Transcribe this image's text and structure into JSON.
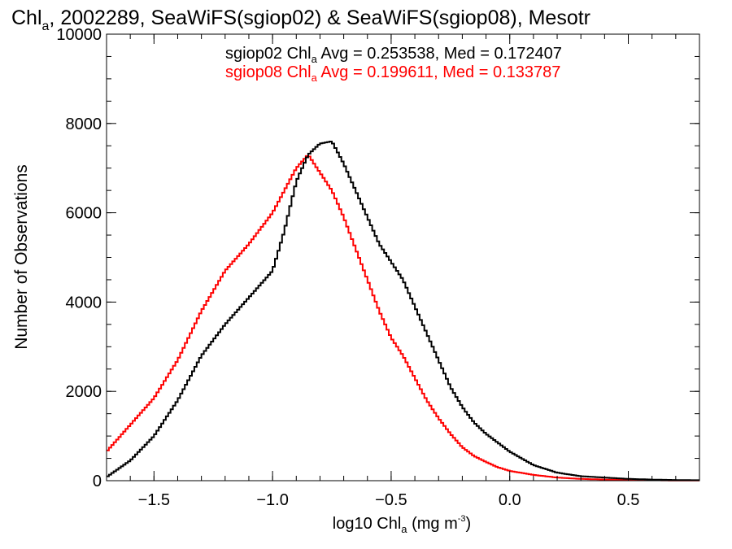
{
  "chart_data": {
    "type": "line",
    "title": {
      "prefix": "Chl",
      "sub": "a",
      "rest": ", 2002289, SeaWiFS(sgiop02) & SeaWiFS(sgiop08), Mesotr"
    },
    "xlabel": {
      "prefix": "log10 Chl",
      "sub": "a",
      "mid": " (mg m",
      "sup": "-3",
      "end": ")"
    },
    "ylabel": "Number of Observations",
    "xlim": [
      -1.7,
      0.8
    ],
    "ylim": [
      0,
      10000
    ],
    "x_ticks": [
      {
        "value": -1.5,
        "label": "−1.5"
      },
      {
        "value": -1.0,
        "label": "−1.0"
      },
      {
        "value": -0.5,
        "label": "−0.5"
      },
      {
        "value": 0.0,
        "label": "0.0"
      },
      {
        "value": 0.5,
        "label": "0.5"
      }
    ],
    "y_ticks": [
      {
        "value": 0,
        "label": "0"
      },
      {
        "value": 2000,
        "label": "2000"
      },
      {
        "value": 4000,
        "label": "4000"
      },
      {
        "value": 6000,
        "label": "6000"
      },
      {
        "value": 8000,
        "label": "8000"
      },
      {
        "value": 10000,
        "label": "10000"
      }
    ],
    "legend_position": "top-center",
    "series": [
      {
        "name": "sgiop02",
        "color": "#000000",
        "legend": {
          "prefix": "sgiop02 Chl",
          "sub": "a",
          "rest": " Avg = 0.253538, Med = 0.172407"
        },
        "x": [
          -1.7,
          -1.6,
          -1.5,
          -1.4,
          -1.3,
          -1.2,
          -1.1,
          -1.0,
          -0.95,
          -0.9,
          -0.85,
          -0.8,
          -0.75,
          -0.7,
          -0.65,
          -0.6,
          -0.55,
          -0.5,
          -0.45,
          -0.4,
          -0.35,
          -0.3,
          -0.25,
          -0.2,
          -0.15,
          -0.1,
          -0.05,
          0.0,
          0.1,
          0.2,
          0.3,
          0.4,
          0.5,
          0.6,
          0.7,
          0.8
        ],
        "y": [
          80,
          450,
          1000,
          1800,
          2800,
          3500,
          4100,
          4700,
          5600,
          6700,
          7300,
          7550,
          7600,
          7100,
          6500,
          5900,
          5300,
          4900,
          4500,
          3900,
          3300,
          2700,
          2100,
          1650,
          1300,
          1050,
          850,
          650,
          350,
          180,
          100,
          70,
          40,
          25,
          15,
          10
        ]
      },
      {
        "name": "sgiop08",
        "color": "#ff0000",
        "legend": {
          "prefix": "sgiop08 Chl",
          "sub": "a",
          "rest": " Avg = 0.199611, Med = 0.133787"
        },
        "x": [
          -1.7,
          -1.6,
          -1.5,
          -1.4,
          -1.3,
          -1.2,
          -1.1,
          -1.0,
          -0.95,
          -0.9,
          -0.85,
          -0.8,
          -0.75,
          -0.7,
          -0.65,
          -0.6,
          -0.55,
          -0.5,
          -0.45,
          -0.4,
          -0.35,
          -0.3,
          -0.25,
          -0.2,
          -0.15,
          -0.1,
          -0.05,
          0.0,
          0.1,
          0.2,
          0.3,
          0.4,
          0.5,
          0.6,
          0.7,
          0.8
        ],
        "y": [
          650,
          1250,
          1850,
          2700,
          3800,
          4700,
          5300,
          6000,
          6500,
          7000,
          7300,
          6900,
          6500,
          5900,
          5200,
          4500,
          3800,
          3200,
          2800,
          2300,
          1800,
          1400,
          1050,
          750,
          550,
          420,
          300,
          220,
          130,
          70,
          40,
          25,
          15,
          10,
          5,
          5
        ]
      }
    ]
  }
}
